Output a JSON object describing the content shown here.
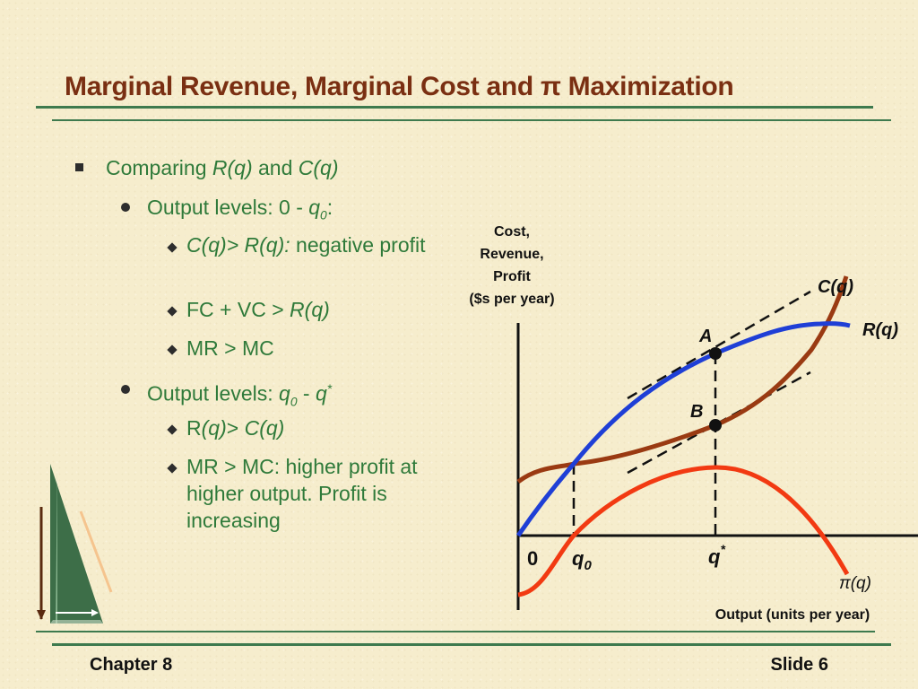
{
  "slide": {
    "title": "Marginal Revenue, Marginal Cost and π Maximization",
    "footer_left": "Chapter 8",
    "footer_right": "Slide 6"
  },
  "bullets": {
    "b1": {
      "text": "Comparing ",
      "r": "R(q)",
      "and": " and ",
      "c": "C(q)"
    },
    "b2a": {
      "text": "Output levels: 0 - ",
      "q": "q",
      "sub": "0",
      "colon": ":"
    },
    "b3a": {
      "c_gt_r": "C(q)> R(q):",
      "text": " negative profit"
    },
    "b3b": {
      "text": "FC + VC > ",
      "r": "R(q)"
    },
    "b3c": {
      "text": "MR > MC"
    },
    "b2b": {
      "text": "Output levels: ",
      "q0": "q",
      "sub": "0",
      "dash": " - ",
      "qs": "q",
      "sup": "*"
    },
    "b3d": {
      "r": "R",
      "q": "(q)",
      "gt": "> ",
      "c": "C(q)"
    },
    "b3e": {
      "text": "MR > MC: higher profit at higher output. Profit is increasing"
    }
  },
  "chart": {
    "y_label_lines": [
      "Cost,",
      "Revenue,",
      "Profit",
      "($s per year)"
    ],
    "x_label": "Output (units per year)",
    "origin_label": "0",
    "q0_label": "q",
    "q0_sub": "0",
    "qstar_label": "q",
    "qstar_sup": "*",
    "cost_label": "C(q)",
    "revenue_label": "R(q)",
    "profit_label": "π(q)",
    "point_a_label": "A",
    "point_b_label": "B",
    "colors": {
      "revenue": "#1f3fd6",
      "cost": "#9a3a12",
      "profit": "#f23a12",
      "axes": "#111111",
      "dashed": "#111111"
    }
  }
}
